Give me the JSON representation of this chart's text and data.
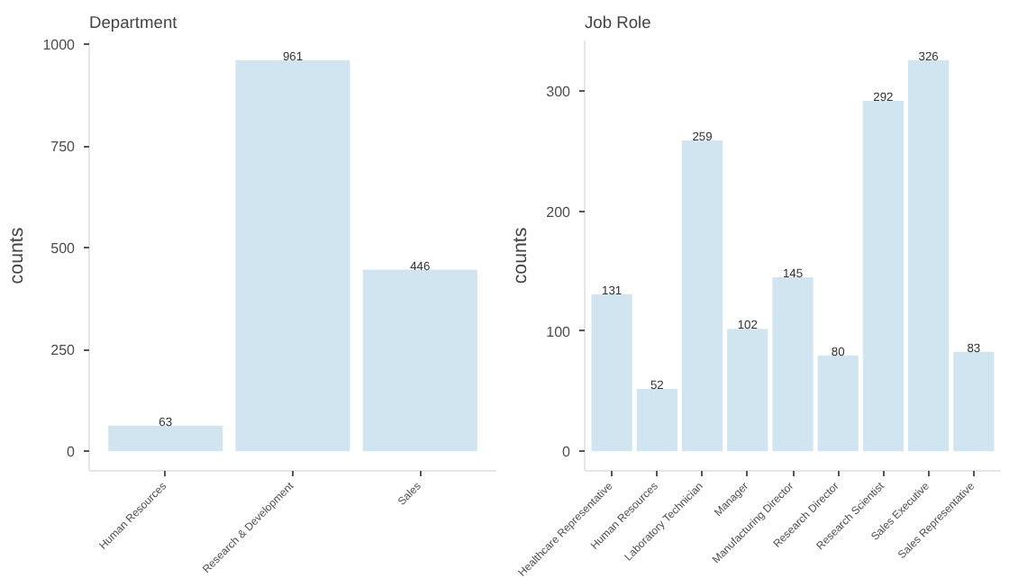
{
  "chart_data": [
    {
      "type": "bar",
      "title": "Department",
      "ylabel": "counts",
      "categories": [
        "Human Resources",
        "Research & Development",
        "Sales"
      ],
      "values": [
        63,
        961,
        446
      ],
      "color": "#d1e5f0",
      "ylim": [
        -48,
        1009
      ],
      "yticks": [
        0,
        250,
        500,
        750,
        1000
      ],
      "data_labels": true,
      "grid": false
    },
    {
      "type": "bar",
      "title": "Job Role",
      "ylabel": "counts",
      "categories": [
        "Healthcare Representative",
        "Human Resources",
        "Laboratory Technician",
        "Manager",
        "Manufacturing Director",
        "Research Director",
        "Research Scientist",
        "Sales Executive",
        "Sales Representative"
      ],
      "values": [
        131,
        52,
        259,
        102,
        145,
        80,
        292,
        326,
        83
      ],
      "color": "#d1e5f0",
      "ylim": [
        -16.3,
        342.3
      ],
      "yticks": [
        0,
        100,
        200,
        300
      ],
      "data_labels": true,
      "grid": false
    }
  ]
}
